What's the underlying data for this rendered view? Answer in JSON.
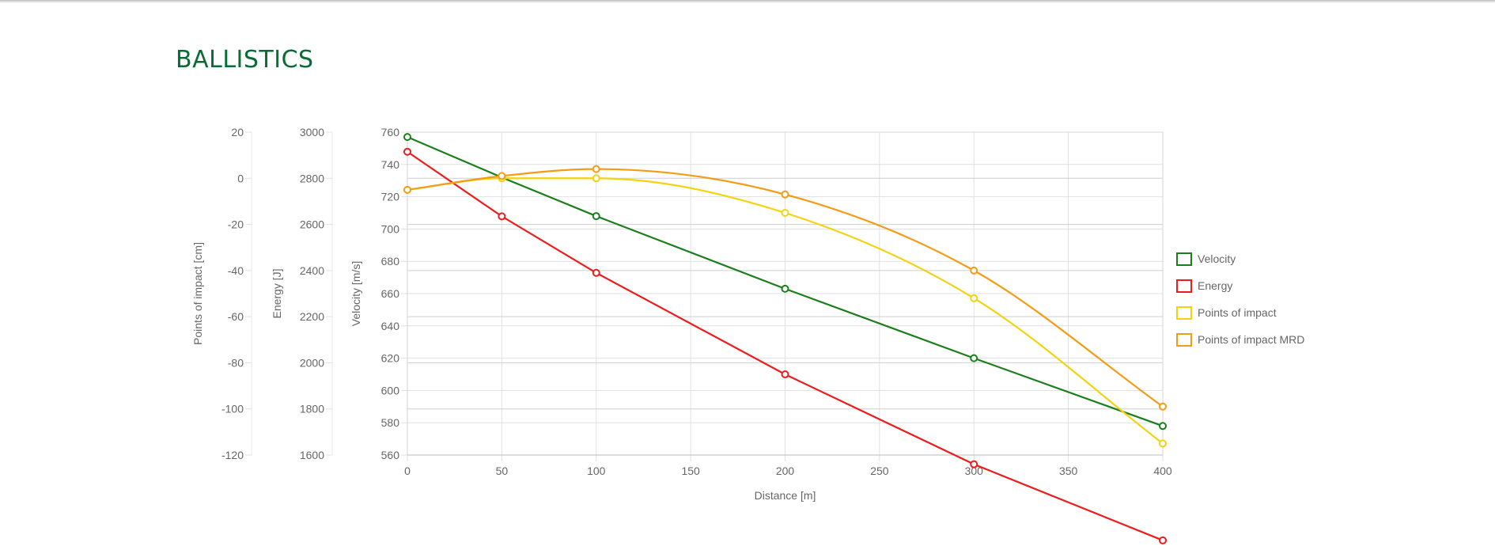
{
  "page": {
    "title": "BALLISTICS"
  },
  "chart_data": {
    "type": "line",
    "xlabel": "Distance [m]",
    "x_ticks": [
      0,
      50,
      100,
      150,
      200,
      250,
      300,
      350,
      400
    ],
    "xlim": [
      0,
      400
    ],
    "grid": true,
    "legend_position": "right",
    "axes": [
      {
        "id": "poi",
        "label": "Points of impact [cm]",
        "ylim": [
          -120,
          20
        ],
        "ticks": [
          20,
          0,
          -20,
          -40,
          -60,
          -80,
          -100,
          -120
        ]
      },
      {
        "id": "energy",
        "label": "Energy [J]",
        "ylim": [
          1600,
          3000
        ],
        "ticks": [
          3000,
          2800,
          2600,
          2400,
          2200,
          2000,
          1800,
          1600
        ]
      },
      {
        "id": "velocity",
        "label": "Velocity [m/s]",
        "ylim": [
          560,
          760
        ],
        "ticks": [
          760,
          740,
          720,
          700,
          680,
          660,
          640,
          620,
          600,
          580,
          560
        ]
      }
    ],
    "series": [
      {
        "name": "Velocity",
        "axis": "velocity",
        "color": "#1a7f1a",
        "smooth": false,
        "points": [
          [
            0,
            757
          ],
          [
            50,
            732
          ],
          [
            100,
            708
          ],
          [
            200,
            663
          ],
          [
            300,
            620
          ],
          [
            400,
            578
          ]
        ]
      },
      {
        "name": "Energy",
        "axis": "energy",
        "color": "#ee1c1c",
        "smooth": false,
        "points": [
          [
            0,
            2915
          ],
          [
            50,
            2635
          ],
          [
            100,
            2390
          ],
          [
            200,
            1950
          ],
          [
            300,
            1560
          ],
          [
            400,
            1230
          ]
        ]
      },
      {
        "name": "Points of impact",
        "axis": "poi",
        "color": "#f5d20f",
        "smooth": true,
        "points": [
          [
            0,
            -5
          ],
          [
            50,
            0
          ],
          [
            100,
            0
          ],
          [
            200,
            -15
          ],
          [
            300,
            -52
          ],
          [
            400,
            -115
          ]
        ]
      },
      {
        "name": "Points of impact MRD",
        "axis": "poi",
        "color": "#f49c16",
        "smooth": true,
        "points": [
          [
            0,
            -5
          ],
          [
            50,
            1
          ],
          [
            100,
            4
          ],
          [
            200,
            -7
          ],
          [
            300,
            -40
          ],
          [
            400,
            -99
          ]
        ]
      }
    ]
  }
}
